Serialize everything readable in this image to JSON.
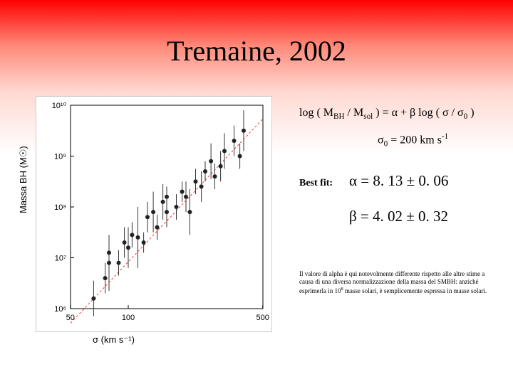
{
  "title": "Tremaine, 2002",
  "plot": {
    "type": "scatter",
    "xlabel": "σ (km s⁻¹)",
    "ylabel": "Massa BH (M☉)",
    "xscale": "log",
    "yscale": "log",
    "xlim_log": [
      1.7,
      2.7
    ],
    "ylim_log": [
      6,
      10
    ],
    "xticks": [
      50,
      100,
      500
    ],
    "xticks_log": [
      1.699,
      2.0,
      2.699
    ],
    "yticks": [
      "10⁶",
      "10⁷",
      "10⁸",
      "10⁹",
      "10¹⁰"
    ],
    "yticks_log": [
      6,
      7,
      8,
      9,
      10
    ],
    "fit_line_color": "#ff3333",
    "fit_line_dash": "3,3",
    "fit_alpha": 8.13,
    "fit_beta": 4.02,
    "fit_sigma0_log": 2.301,
    "point_color": "#222222",
    "point_radius": 3,
    "errorbar_color": "#333333",
    "background_color": "#ffffff",
    "axis_color": "#000000",
    "tick_fontsize": 11,
    "points": [
      {
        "x": 1.82,
        "y": 6.2,
        "ey": 0.35
      },
      {
        "x": 1.88,
        "y": 6.6,
        "ey": 0.3
      },
      {
        "x": 1.9,
        "y": 6.9,
        "ey": 0.55
      },
      {
        "x": 1.9,
        "y": 7.1,
        "ey": 0.2
      },
      {
        "x": 1.95,
        "y": 6.9,
        "ey": 0.25
      },
      {
        "x": 1.98,
        "y": 7.3,
        "ey": 0.3
      },
      {
        "x": 2.0,
        "y": 7.2,
        "ey": 0.4
      },
      {
        "x": 2.02,
        "y": 7.45,
        "ey": 0.25
      },
      {
        "x": 2.05,
        "y": 7.4,
        "ey": 0.6
      },
      {
        "x": 2.08,
        "y": 7.3,
        "ey": 0.2
      },
      {
        "x": 2.1,
        "y": 7.8,
        "ey": 0.3
      },
      {
        "x": 2.13,
        "y": 7.9,
        "ey": 0.4
      },
      {
        "x": 2.15,
        "y": 7.6,
        "ey": 0.25
      },
      {
        "x": 2.18,
        "y": 8.1,
        "ey": 0.35
      },
      {
        "x": 2.2,
        "y": 8.2,
        "ey": 0.2
      },
      {
        "x": 2.2,
        "y": 7.9,
        "ey": 0.3
      },
      {
        "x": 2.25,
        "y": 8.0,
        "ey": 0.25
      },
      {
        "x": 2.28,
        "y": 8.3,
        "ey": 0.2
      },
      {
        "x": 2.3,
        "y": 8.2,
        "ey": 0.3
      },
      {
        "x": 2.32,
        "y": 7.9,
        "ey": 0.45
      },
      {
        "x": 2.35,
        "y": 8.5,
        "ey": 0.25
      },
      {
        "x": 2.38,
        "y": 8.4,
        "ey": 0.3
      },
      {
        "x": 2.4,
        "y": 8.7,
        "ey": 0.2
      },
      {
        "x": 2.43,
        "y": 8.9,
        "ey": 0.35
      },
      {
        "x": 2.45,
        "y": 8.6,
        "ey": 0.25
      },
      {
        "x": 2.48,
        "y": 8.8,
        "ey": 0.3
      },
      {
        "x": 2.5,
        "y": 9.1,
        "ey": 0.35
      },
      {
        "x": 2.55,
        "y": 9.3,
        "ey": 0.3
      },
      {
        "x": 2.58,
        "y": 9.0,
        "ey": 0.25
      },
      {
        "x": 2.6,
        "y": 9.5,
        "ey": 0.4
      }
    ]
  },
  "equation1_html": "log ( M<sub>BH</sub> / M<sub>sol</sub> ) = α + β log ( σ / σ<sub>0</sub> )",
  "equation2_html": "σ<sub>0</sub> = 200 km s<sup>-1</sup>",
  "bestfit_label": "Best fit:",
  "alpha_html": "α = 8. 13 ± 0. 06",
  "beta_html": "β = 4. 02 ± 0. 32",
  "note_html": "Il valore di alpha è qui notevolmente differente rispetto alle altre stime a causa di una diversa normalizzazione della massa del SMBH: anziché esprimerla in 10<sup>8</sup> masse solari, è semplicemente espressa in masse solari.",
  "colors": {
    "title": "#000000",
    "text": "#000000",
    "gradient_top": "#ff0000",
    "gradient_bottom": "#ffffff"
  }
}
